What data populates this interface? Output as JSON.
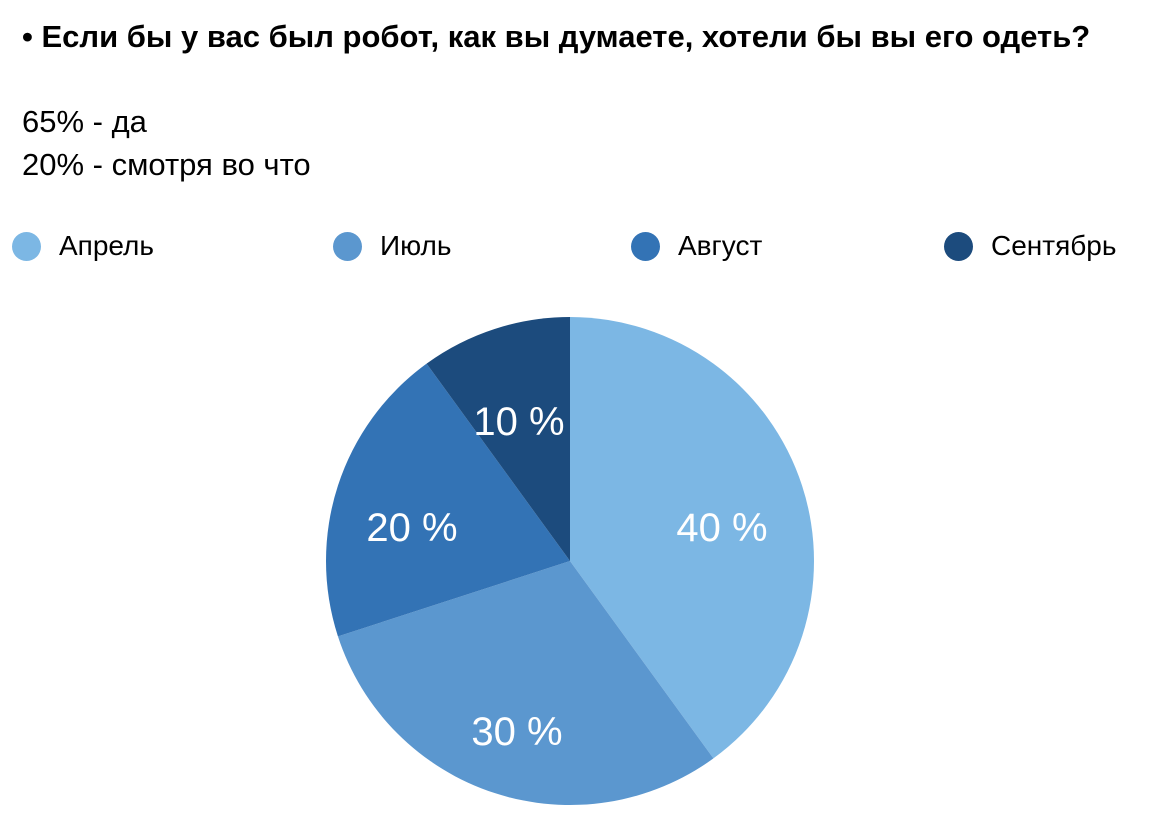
{
  "question": "• Если бы у вас был робот, как вы думаете, хотели бы вы его одеть?",
  "answers": [
    "65% - да",
    "20% - смотря во что"
  ],
  "chart_data": {
    "type": "pie",
    "categories": [
      "Апрель",
      "Июль",
      "Август",
      "Сентябрь"
    ],
    "values": [
      40,
      30,
      20,
      10
    ],
    "labels": [
      "40 %",
      "30 %",
      "20 %",
      "10 %"
    ],
    "colors": [
      "#7cb7e4",
      "#5b97cf",
      "#3373b5",
      "#1c4b7d"
    ],
    "legend_position": "top"
  }
}
